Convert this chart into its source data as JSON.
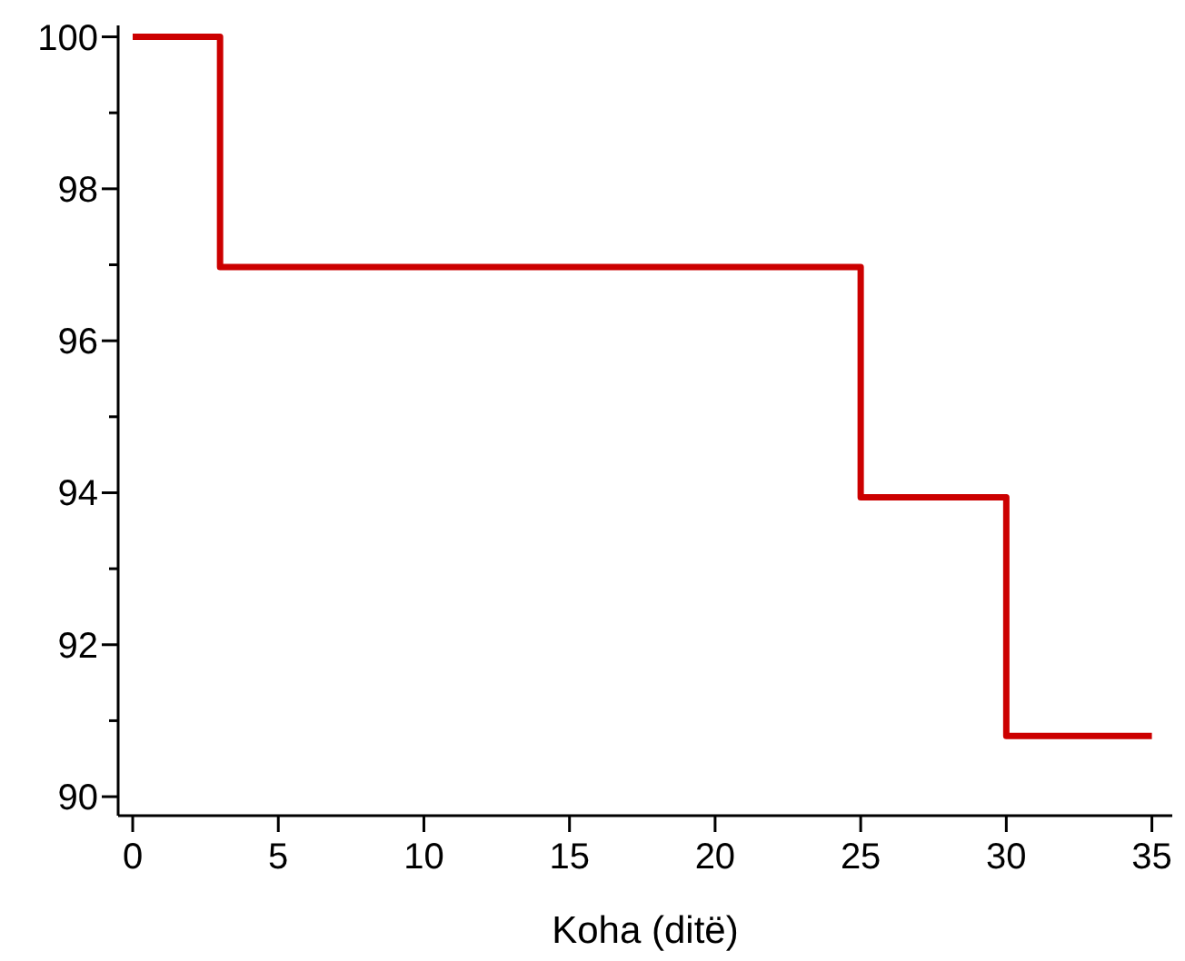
{
  "chart_data": {
    "type": "step",
    "xlabel": "Koha (ditë)",
    "x": [
      0,
      3,
      25,
      30,
      35
    ],
    "series": [
      {
        "color": "#cc0000",
        "values": [
          100,
          96.97,
          93.94,
          90.8,
          90.8
        ]
      }
    ],
    "xlim": [
      -0.5,
      35.7
    ],
    "xticks": [
      0,
      5,
      10,
      15,
      20,
      25,
      30,
      35
    ],
    "ylim": [
      89.75,
      100.15
    ],
    "yticks": [
      90,
      {
        "value": 91,
        "label": null
      },
      92,
      {
        "value": 93,
        "label": null
      },
      94,
      {
        "value": 95,
        "label": null
      },
      96,
      {
        "value": 97,
        "label": null
      },
      98,
      {
        "value": 99,
        "label": null
      },
      100
    ],
    "grid": false,
    "line_style": "solid"
  }
}
